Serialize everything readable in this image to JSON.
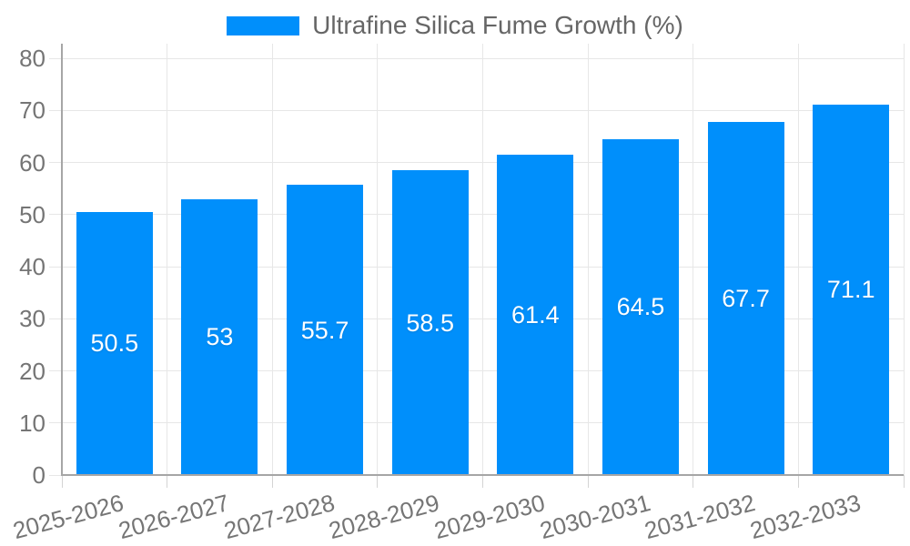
{
  "legend": {
    "label": "Ultrafine Silica Fume Growth (%)"
  },
  "chart_data": {
    "type": "bar",
    "title": "",
    "xlabel": "",
    "ylabel": "",
    "categories": [
      "2025-2026",
      "2026-2027",
      "2027-2028",
      "2028-2029",
      "2029-2030",
      "2030-2031",
      "2031-2032",
      "2032-2033"
    ],
    "series": [
      {
        "name": "Ultrafine Silica Fume Growth (%)",
        "values": [
          50.5,
          53,
          55.7,
          58.5,
          61.4,
          64.5,
          67.7,
          71.1
        ]
      }
    ],
    "ylim": [
      0,
      80
    ],
    "yticks": [
      0,
      10,
      20,
      30,
      40,
      50,
      60,
      70,
      80
    ],
    "grid": true,
    "legend_position": "top-center",
    "value_labels": "inside-center",
    "colors": {
      "bar": "#008FFB",
      "bar_value_text": "#ffffff",
      "axis_text": "#757575",
      "legend_text": "#666666",
      "gridline": "#e7e7e7",
      "axis_line": "#a6a6a6"
    }
  }
}
